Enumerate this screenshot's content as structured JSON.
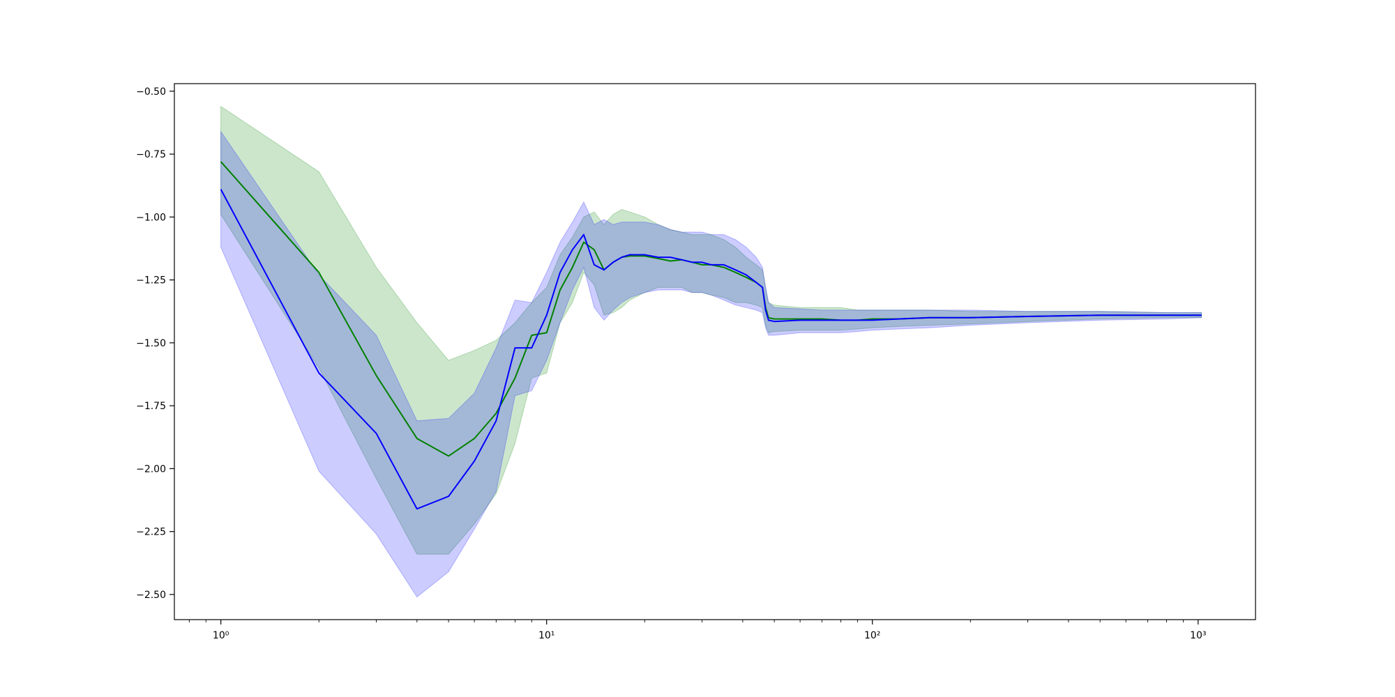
{
  "chart_data": {
    "type": "line",
    "title": "",
    "xlabel": "",
    "ylabel": "",
    "xscale": "log",
    "xlim": [
      0.72,
      1500
    ],
    "ylim": [
      -2.6,
      -0.47
    ],
    "grid": false,
    "legend": "none",
    "x_ticks": [
      {
        "value": 1,
        "label": "10⁰"
      },
      {
        "value": 10,
        "label": "10¹"
      },
      {
        "value": 100,
        "label": "10²"
      },
      {
        "value": 1000,
        "label": "10³"
      }
    ],
    "y_ticks": [
      {
        "value": -0.5,
        "label": "−0.50"
      },
      {
        "value": -0.75,
        "label": "−0.75"
      },
      {
        "value": -1.0,
        "label": "−1.00"
      },
      {
        "value": -1.25,
        "label": "−1.25"
      },
      {
        "value": -1.5,
        "label": "−1.50"
      },
      {
        "value": -1.75,
        "label": "−1.75"
      },
      {
        "value": -2.0,
        "label": "−2.00"
      },
      {
        "value": -2.25,
        "label": "−2.25"
      },
      {
        "value": -2.5,
        "label": "−2.50"
      }
    ],
    "series": [
      {
        "color": "#008000",
        "band_opacity": 0.2,
        "x": [
          1,
          2,
          3,
          4,
          5,
          6,
          7,
          8,
          9,
          10,
          11,
          12,
          13,
          14,
          15,
          16,
          17,
          18,
          20,
          22,
          24,
          26,
          28,
          30,
          32,
          35,
          38,
          41,
          44,
          46,
          47,
          48,
          50,
          60,
          70,
          80,
          90,
          100,
          120,
          150,
          200,
          300,
          500,
          800,
          1024
        ],
        "y": [
          -0.78,
          -1.22,
          -1.63,
          -1.88,
          -1.95,
          -1.88,
          -1.78,
          -1.64,
          -1.47,
          -1.46,
          -1.29,
          -1.2,
          -1.1,
          -1.13,
          -1.21,
          -1.18,
          -1.16,
          -1.155,
          -1.155,
          -1.165,
          -1.175,
          -1.17,
          -1.18,
          -1.19,
          -1.19,
          -1.2,
          -1.22,
          -1.24,
          -1.26,
          -1.28,
          -1.36,
          -1.4,
          -1.405,
          -1.405,
          -1.405,
          -1.41,
          -1.41,
          -1.405,
          -1.405,
          -1.4,
          -1.4,
          -1.395,
          -1.39,
          -1.39,
          -1.39
        ],
        "upper": [
          -0.56,
          -0.82,
          -1.2,
          -1.42,
          -1.57,
          -1.53,
          -1.49,
          -1.42,
          -1.34,
          -1.28,
          -1.15,
          -1.08,
          -1.0,
          -0.98,
          -1.03,
          -0.99,
          -0.97,
          -0.98,
          -1.0,
          -1.03,
          -1.05,
          -1.06,
          -1.07,
          -1.07,
          -1.07,
          -1.09,
          -1.12,
          -1.16,
          -1.19,
          -1.21,
          -1.28,
          -1.34,
          -1.35,
          -1.36,
          -1.36,
          -1.36,
          -1.37,
          -1.37,
          -1.37,
          -1.37,
          -1.375,
          -1.375,
          -1.375,
          -1.38,
          -1.38
        ],
        "lower": [
          -0.99,
          -1.6,
          -2.04,
          -2.34,
          -2.34,
          -2.22,
          -2.1,
          -1.9,
          -1.64,
          -1.62,
          -1.42,
          -1.34,
          -1.22,
          -1.27,
          -1.39,
          -1.38,
          -1.36,
          -1.33,
          -1.3,
          -1.28,
          -1.28,
          -1.28,
          -1.3,
          -1.3,
          -1.31,
          -1.32,
          -1.34,
          -1.34,
          -1.35,
          -1.36,
          -1.43,
          -1.46,
          -1.455,
          -1.45,
          -1.45,
          -1.45,
          -1.445,
          -1.44,
          -1.435,
          -1.43,
          -1.425,
          -1.415,
          -1.405,
          -1.4,
          -1.4
        ]
      },
      {
        "color": "#0000ff",
        "band_opacity": 0.2,
        "x": [
          1,
          2,
          3,
          4,
          5,
          6,
          7,
          8,
          9,
          10,
          11,
          12,
          13,
          14,
          15,
          16,
          17,
          18,
          20,
          22,
          24,
          26,
          28,
          30,
          32,
          35,
          38,
          41,
          44,
          46,
          47,
          48,
          50,
          60,
          70,
          80,
          90,
          100,
          120,
          150,
          200,
          300,
          500,
          800,
          1024
        ],
        "y": [
          -0.89,
          -1.62,
          -1.86,
          -2.16,
          -2.11,
          -1.97,
          -1.81,
          -1.52,
          -1.52,
          -1.39,
          -1.22,
          -1.13,
          -1.07,
          -1.19,
          -1.21,
          -1.18,
          -1.16,
          -1.15,
          -1.15,
          -1.16,
          -1.16,
          -1.17,
          -1.18,
          -1.18,
          -1.19,
          -1.19,
          -1.21,
          -1.23,
          -1.26,
          -1.28,
          -1.37,
          -1.41,
          -1.415,
          -1.41,
          -1.41,
          -1.41,
          -1.41,
          -1.41,
          -1.405,
          -1.4,
          -1.4,
          -1.395,
          -1.39,
          -1.39,
          -1.39
        ],
        "upper": [
          -0.66,
          -1.23,
          -1.47,
          -1.81,
          -1.8,
          -1.7,
          -1.52,
          -1.33,
          -1.34,
          -1.22,
          -1.1,
          -1.02,
          -0.94,
          -1.03,
          -1.01,
          -1.03,
          -1.02,
          -1.02,
          -1.02,
          -1.03,
          -1.05,
          -1.06,
          -1.06,
          -1.06,
          -1.07,
          -1.07,
          -1.09,
          -1.12,
          -1.16,
          -1.2,
          -1.28,
          -1.34,
          -1.36,
          -1.365,
          -1.37,
          -1.37,
          -1.37,
          -1.37,
          -1.37,
          -1.37,
          -1.37,
          -1.375,
          -1.375,
          -1.38,
          -1.38
        ],
        "lower": [
          -1.12,
          -2.01,
          -2.26,
          -2.51,
          -2.41,
          -2.24,
          -2.09,
          -1.71,
          -1.69,
          -1.57,
          -1.42,
          -1.29,
          -1.2,
          -1.36,
          -1.41,
          -1.37,
          -1.34,
          -1.32,
          -1.3,
          -1.29,
          -1.29,
          -1.29,
          -1.3,
          -1.3,
          -1.31,
          -1.33,
          -1.35,
          -1.36,
          -1.37,
          -1.38,
          -1.44,
          -1.47,
          -1.47,
          -1.46,
          -1.46,
          -1.46,
          -1.455,
          -1.45,
          -1.445,
          -1.44,
          -1.43,
          -1.42,
          -1.41,
          -1.405,
          -1.4
        ]
      }
    ]
  }
}
